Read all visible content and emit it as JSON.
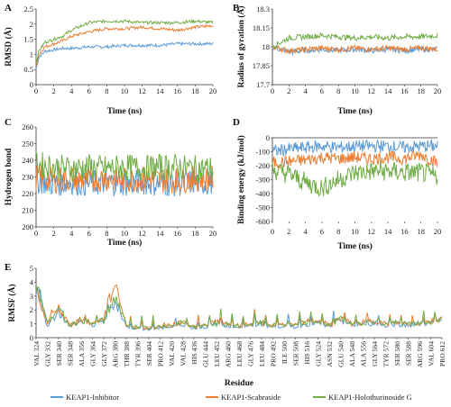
{
  "chart_data": [
    {
      "panel": "A",
      "type": "line",
      "xlabel": "Time (ns)",
      "ylabel": "RMSD (Å)",
      "xlim": [
        0,
        20
      ],
      "ylim": [
        0,
        2.5
      ],
      "xticks": [
        "0",
        "2",
        "4",
        "6",
        "8",
        "10",
        "12",
        "14",
        "16",
        "18",
        "20"
      ],
      "yticks": [
        "0",
        "0.5",
        "1",
        "1.5",
        "2",
        "2.5"
      ],
      "series": [
        {
          "name": "KEAP1-Inhibitor",
          "color": "#5b9bd5",
          "x": [
            0,
            0.3,
            1,
            2,
            3,
            4,
            6,
            8,
            10,
            12,
            14,
            16,
            18,
            20
          ],
          "y": [
            0.5,
            0.9,
            1.1,
            1.15,
            1.2,
            1.2,
            1.25,
            1.25,
            1.3,
            1.3,
            1.3,
            1.35,
            1.35,
            1.35
          ]
        },
        {
          "name": "KEAP1-Scabraside",
          "color": "#ed7d31",
          "x": [
            0,
            0.3,
            1,
            2,
            3,
            4,
            6,
            8,
            10,
            12,
            14,
            16,
            18,
            20
          ],
          "y": [
            0.6,
            1.0,
            1.25,
            1.35,
            1.45,
            1.6,
            1.75,
            1.85,
            1.85,
            1.9,
            1.85,
            1.8,
            1.9,
            1.95
          ]
        },
        {
          "name": "KEAP1-Holothurinoside G",
          "color": "#70ad47",
          "x": [
            0,
            0.3,
            1,
            2,
            3,
            4,
            6,
            8,
            10,
            12,
            14,
            16,
            18,
            20
          ],
          "y": [
            0.7,
            1.1,
            1.4,
            1.5,
            1.6,
            1.8,
            2.05,
            2.1,
            2.1,
            2.05,
            2.05,
            2.05,
            2.1,
            2.05
          ]
        }
      ]
    },
    {
      "panel": "B",
      "type": "line",
      "xlabel": "Time (ns)",
      "ylabel": "Radius of gyration (Å)",
      "xlim": [
        0,
        20
      ],
      "ylim": [
        17.7,
        18.3
      ],
      "xticks": [
        "0",
        "2",
        "4",
        "6",
        "8",
        "10",
        "12",
        "14",
        "16",
        "18",
        "20"
      ],
      "yticks": [
        "17.7",
        "17.85",
        "18",
        "18.15",
        "18.3"
      ],
      "series": [
        {
          "name": "KEAP1-Inhibitor",
          "color": "#5b9bd5",
          "x": [
            0,
            2,
            4,
            6,
            8,
            10,
            12,
            14,
            16,
            18,
            20
          ],
          "y": [
            18.0,
            17.96,
            17.97,
            17.98,
            17.97,
            17.98,
            17.97,
            17.98,
            17.97,
            17.98,
            17.98
          ]
        },
        {
          "name": "KEAP1-Scabraside",
          "color": "#ed7d31",
          "x": [
            0,
            2,
            4,
            6,
            8,
            10,
            12,
            14,
            16,
            18,
            20
          ],
          "y": [
            18.0,
            17.97,
            17.98,
            17.99,
            17.98,
            17.99,
            17.98,
            17.99,
            17.98,
            17.99,
            17.98
          ]
        },
        {
          "name": "KEAP1-Holothurinoside G",
          "color": "#70ad47",
          "x": [
            0,
            2,
            4,
            6,
            8,
            10,
            12,
            14,
            16,
            18,
            20
          ],
          "y": [
            18.0,
            18.07,
            18.08,
            18.09,
            18.08,
            18.07,
            18.08,
            18.07,
            18.08,
            18.08,
            18.09
          ]
        }
      ]
    },
    {
      "panel": "C",
      "type": "line",
      "xlabel": "Time (ns)",
      "ylabel": "Hydrogen bond",
      "xlim": [
        0,
        20
      ],
      "ylim": [
        200,
        260
      ],
      "xticks": [
        "0",
        "2",
        "4",
        "6",
        "8",
        "10",
        "12",
        "14",
        "16",
        "18",
        "20"
      ],
      "yticks": [
        "200",
        "210",
        "220",
        "230",
        "240",
        "250",
        "260"
      ],
      "series": [
        {
          "name": "KEAP1-Inhibitor",
          "color": "#5b9bd5",
          "x": [
            0,
            2,
            4,
            6,
            8,
            10,
            12,
            14,
            16,
            18,
            20
          ],
          "y": [
            228,
            226,
            227,
            226,
            227,
            226,
            227,
            226,
            226,
            227,
            226
          ]
        },
        {
          "name": "KEAP1-Scabraside",
          "color": "#ed7d31",
          "x": [
            0,
            2,
            4,
            6,
            8,
            10,
            12,
            14,
            16,
            18,
            20
          ],
          "y": [
            230,
            228,
            229,
            228,
            229,
            228,
            229,
            228,
            228,
            229,
            229
          ]
        },
        {
          "name": "KEAP1-Holothurinoside G",
          "color": "#70ad47",
          "x": [
            0,
            2,
            4,
            6,
            8,
            10,
            12,
            14,
            16,
            18,
            20
          ],
          "y": [
            238,
            236,
            235,
            236,
            235,
            236,
            235,
            236,
            236,
            235,
            235
          ]
        }
      ]
    },
    {
      "panel": "D",
      "type": "line",
      "xlabel": "Time (ns)",
      "ylabel": "Binding energy (kJ/mol)",
      "xlim": [
        0,
        20
      ],
      "ylim": [
        -600,
        0
      ],
      "xticks": [
        "0",
        "2",
        "4",
        "6",
        "8",
        "10",
        "12",
        "14",
        "16",
        "18",
        "20"
      ],
      "yticks": [
        "0",
        "-100",
        "-200",
        "-300",
        "-400",
        "-500",
        "-600"
      ],
      "series": [
        {
          "name": "KEAP1-Inhibitor",
          "color": "#5b9bd5",
          "x": [
            0,
            2,
            4,
            6,
            8,
            10,
            12,
            14,
            16,
            18,
            20
          ],
          "y": [
            -100,
            -80,
            -70,
            -60,
            -70,
            -60,
            -60,
            -60,
            -70,
            -60,
            -60
          ]
        },
        {
          "name": "KEAP1-Scabraside",
          "color": "#ed7d31",
          "x": [
            0,
            2,
            4,
            6,
            8,
            10,
            12,
            14,
            16,
            18,
            20
          ],
          "y": [
            -180,
            -170,
            -160,
            -140,
            -150,
            -140,
            -150,
            -140,
            -150,
            -120,
            -180
          ]
        },
        {
          "name": "KEAP1-Holothurinoside G",
          "color": "#70ad47",
          "x": [
            0,
            2,
            4,
            6,
            8,
            10,
            12,
            14,
            16,
            18,
            20
          ],
          "y": [
            -230,
            -260,
            -320,
            -360,
            -300,
            -250,
            -240,
            -240,
            -250,
            -250,
            -280
          ]
        }
      ]
    },
    {
      "panel": "E",
      "type": "line",
      "xlabel": "Residue",
      "ylabel": "RMSF (Å)",
      "ylim": [
        0,
        5
      ],
      "yticks": [
        "0",
        "1",
        "2",
        "3",
        "4",
        "5"
      ],
      "categories": [
        "VAL 324",
        "GLY 332",
        "SER 340",
        "SER 348",
        "ALA 356",
        "GLY 364",
        "GLY 372",
        "ARG 380",
        "THR 388",
        "TYR 396",
        "SER 404",
        "PRO 412",
        "VAL 420",
        "VAL 428",
        "HIS 436",
        "GLU 444",
        "LEU 452",
        "ARG 460",
        "LEU 468",
        "GLY 476",
        "LEU 484",
        "PRO 492",
        "ILE 500",
        "SER 508",
        "HIS 516",
        "GLY 524",
        "ASN 532",
        "GLU 540",
        "ALA 548",
        "ALA 556",
        "GLY 564",
        "TYR 572",
        "SER 580",
        "SER 588",
        "ARG 596",
        "VAL 604",
        "PRO 612"
      ],
      "series": [
        {
          "name": "KEAP1-Inhibitor",
          "color": "#5b9bd5",
          "values": [
            3.8,
            0.9,
            1.9,
            0.8,
            1.2,
            0.9,
            1.2,
            2.7,
            0.8,
            0.7,
            0.6,
            0.7,
            0.8,
            1.0,
            0.7,
            0.8,
            1.0,
            0.9,
            0.8,
            0.9,
            1.0,
            0.8,
            0.9,
            0.8,
            1.0,
            1.1,
            0.8,
            1.3,
            0.9,
            1.0,
            1.1,
            0.9,
            1.0,
            0.9,
            1.0,
            1.1,
            1.3
          ]
        },
        {
          "name": "KEAP1-Scabraside",
          "color": "#ed7d31",
          "values": [
            3.5,
            1.0,
            2.2,
            0.9,
            1.4,
            1.0,
            1.4,
            4.1,
            0.9,
            0.8,
            0.7,
            0.8,
            0.9,
            1.2,
            0.8,
            0.9,
            1.2,
            1.0,
            0.9,
            1.0,
            1.1,
            0.9,
            1.0,
            0.9,
            1.2,
            1.3,
            0.9,
            1.5,
            1.0,
            1.1,
            1.3,
            1.0,
            1.1,
            1.0,
            1.1,
            1.2,
            1.5
          ]
        },
        {
          "name": "KEAP1-Holothurinoside G",
          "color": "#70ad47",
          "values": [
            4.0,
            1.1,
            2.0,
            0.9,
            1.3,
            1.0,
            1.3,
            3.0,
            0.9,
            0.8,
            0.7,
            0.8,
            0.9,
            1.1,
            0.8,
            0.9,
            1.1,
            1.0,
            0.9,
            1.0,
            1.1,
            0.9,
            1.0,
            0.9,
            1.1,
            1.2,
            0.9,
            1.4,
            1.0,
            1.1,
            1.2,
            1.0,
            1.1,
            1.0,
            1.1,
            1.2,
            1.4
          ]
        }
      ]
    }
  ],
  "legend": [
    {
      "label": "KEAP1-Inhibitor",
      "color": "#5b9bd5"
    },
    {
      "label": "KEAP1-Scabraside",
      "color": "#ed7d31"
    },
    {
      "label": "KEAP1-Holothurinoside G",
      "color": "#70ad47"
    }
  ]
}
